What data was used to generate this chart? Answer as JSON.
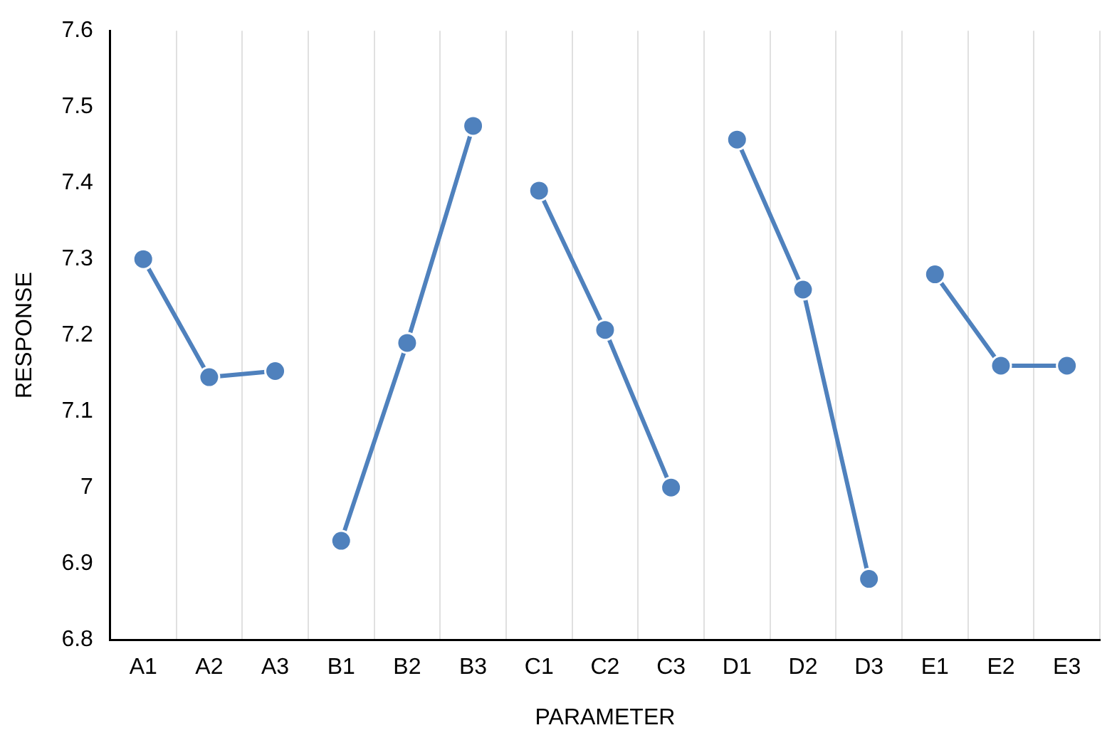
{
  "chart_data": {
    "type": "line",
    "xlabel": "PARAMETER",
    "ylabel": "RESPONSE",
    "categories": [
      "A1",
      "A2",
      "A3",
      "B1",
      "B2",
      "B3",
      "C1",
      "C2",
      "C3",
      "D1",
      "D2",
      "D3",
      "E1",
      "E2",
      "E3"
    ],
    "series": [
      {
        "color": "#4f81bd",
        "values": [
          7.3,
          7.145,
          7.153,
          null,
          null,
          null,
          null,
          null,
          null,
          null,
          null,
          null,
          null,
          null,
          null
        ]
      },
      {
        "color": "#4f81bd",
        "values": [
          null,
          null,
          null,
          6.93,
          7.19,
          7.475,
          null,
          null,
          null,
          null,
          null,
          null,
          null,
          null,
          null
        ]
      },
      {
        "color": "#4f81bd",
        "values": [
          null,
          null,
          null,
          null,
          null,
          null,
          7.39,
          7.207,
          7.0,
          null,
          null,
          null,
          null,
          null,
          null
        ]
      },
      {
        "color": "#4f81bd",
        "values": [
          null,
          null,
          null,
          null,
          null,
          null,
          null,
          null,
          null,
          7.457,
          7.26,
          6.88,
          null,
          null,
          null
        ]
      },
      {
        "color": "#4f81bd",
        "values": [
          null,
          null,
          null,
          null,
          null,
          null,
          null,
          null,
          null,
          null,
          null,
          null,
          7.28,
          7.16,
          7.16
        ]
      }
    ],
    "ylim": [
      6.8,
      7.6
    ],
    "yticks": [
      6.8,
      6.9,
      7,
      7.1,
      7.2,
      7.3,
      7.4,
      7.5,
      7.6
    ],
    "grid": "x",
    "legend": false,
    "marker": "circle",
    "line_style": "solid"
  }
}
